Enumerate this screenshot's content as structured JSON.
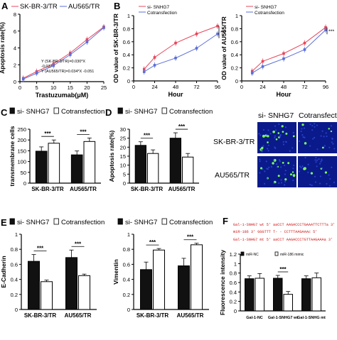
{
  "panel_letters": [
    "A",
    "B",
    "C",
    "D",
    "E",
    "F"
  ],
  "colors": {
    "series_red": "#e8475b",
    "series_blue": "#5b6fd8",
    "bar_black": "#111111",
    "bar_white": "#ffffff",
    "image_blue": "#0a1a8a",
    "image_green": "#7cff5a",
    "seq_red": "#d01818"
  },
  "chart_data": [
    {
      "id": "A",
      "type": "line",
      "legend": [
        "SK-BR-3/TR",
        "AU565/TR"
      ],
      "xlabel": "Trastuzumab(μM)",
      "ylabel": "Apoptosis rate(%)",
      "x": [
        1,
        5,
        10,
        15,
        20,
        25
      ],
      "xticks": [
        0,
        5,
        10,
        15,
        20,
        25
      ],
      "yticks": [
        0,
        2,
        4,
        6,
        8
      ],
      "xlim": [
        0,
        25
      ],
      "ylim": [
        0,
        8
      ],
      "series": [
        {
          "name": "SK-BR-3/TR",
          "color": "#e8475b",
          "values": [
            0.4,
            1.2,
            2.1,
            3.4,
            5.0,
            6.5
          ]
        },
        {
          "name": "AU565/TR",
          "color": "#5b6fd8",
          "values": [
            0.3,
            1.0,
            1.9,
            3.2,
            4.7,
            6.4
          ]
        }
      ],
      "annotations": [
        "Y (SK-BR-3/TR)=0.030*X",
        "-0.037",
        "Y (AU565/TR)=0.034*X -0.051"
      ]
    },
    {
      "id": "B1",
      "type": "line",
      "legend": [
        "si- SNHG7",
        "Cotransfection"
      ],
      "xlabel": "Hour",
      "ylabel": "OD value of SK-BR-3/TR",
      "x": [
        12,
        24,
        48,
        72,
        96
      ],
      "xticks": [
        0,
        24,
        48,
        72,
        96
      ],
      "yticks": [
        0.0,
        0.2,
        0.4,
        0.6,
        0.8,
        1.0
      ],
      "xlim": [
        0,
        96
      ],
      "ylim": [
        0,
        1.0
      ],
      "series": [
        {
          "name": "si- SNHG7",
          "color": "#e8475b",
          "values": [
            0.18,
            0.36,
            0.58,
            0.72,
            0.84
          ]
        },
        {
          "name": "Cotransfection",
          "color": "#5b6fd8",
          "values": [
            0.14,
            0.24,
            0.35,
            0.5,
            0.72
          ]
        }
      ],
      "significance": "***"
    },
    {
      "id": "B2",
      "type": "line",
      "legend": [
        "si- SNHG7",
        "Cotransfection"
      ],
      "xlabel": "Hour",
      "ylabel": "OD value of AU565/TR",
      "x": [
        12,
        24,
        48,
        72,
        96
      ],
      "xticks": [
        0,
        24,
        48,
        72,
        96
      ],
      "yticks": [
        0.0,
        0.2,
        0.4,
        0.6,
        0.8,
        1.0
      ],
      "xlim": [
        0,
        96
      ],
      "ylim": [
        0,
        1.0
      ],
      "series": [
        {
          "name": "si- SNHG7",
          "color": "#e8475b",
          "values": [
            0.15,
            0.3,
            0.42,
            0.58,
            0.82
          ]
        },
        {
          "name": "Cotransfection",
          "color": "#5b6fd8",
          "values": [
            0.12,
            0.22,
            0.34,
            0.48,
            0.78
          ]
        }
      ],
      "significance": "***"
    },
    {
      "id": "C",
      "type": "bar",
      "legend": [
        "si- SNHG7",
        "Cotransfection"
      ],
      "ylabel": "transmembrane cells",
      "categories": [
        "SK-BR-3/TR",
        "AU565/TR"
      ],
      "yticks": [
        0,
        50,
        100,
        150,
        200,
        250
      ],
      "ylim": [
        0,
        250
      ],
      "series": [
        {
          "name": "si- SNHG7",
          "fill": "#111111",
          "values": [
            148,
            131
          ],
          "errors": [
            20,
            18
          ]
        },
        {
          "name": "Cotransfection",
          "fill": "#ffffff",
          "values": [
            185,
            193
          ],
          "errors": [
            15,
            16
          ]
        }
      ],
      "significance": [
        "***",
        "***"
      ]
    },
    {
      "id": "D",
      "type": "bar",
      "legend": [
        "si- SNHG7",
        "Cotransfection"
      ],
      "ylabel": "Apoptosis rate(%)",
      "categories": [
        "SK-BR-3/TR",
        "AU565/TR"
      ],
      "yticks": [
        0,
        5,
        10,
        15,
        20,
        25,
        30
      ],
      "ylim": [
        0,
        30
      ],
      "series": [
        {
          "name": "si- SNHG7",
          "fill": "#111111",
          "values": [
            21,
            25
          ],
          "errors": [
            2,
            3
          ]
        },
        {
          "name": "Cotransfection",
          "fill": "#ffffff",
          "values": [
            16.5,
            14.5
          ],
          "errors": [
            2,
            2
          ]
        }
      ],
      "significance": [
        "***",
        "***"
      ]
    },
    {
      "id": "E1",
      "type": "bar",
      "legend": [
        "si- SNHG7",
        "Cotransfection"
      ],
      "ylabel": "E-Cadherin",
      "categories": [
        "SK-BR-3/TR",
        "AU565/TR"
      ],
      "yticks": [
        0.0,
        0.2,
        0.4,
        0.6,
        0.8,
        1.0
      ],
      "ylim": [
        0,
        1.0
      ],
      "series": [
        {
          "name": "si- SNHG7",
          "fill": "#111111",
          "values": [
            0.64,
            0.69
          ],
          "errors": [
            0.09,
            0.1
          ]
        },
        {
          "name": "Cotransfection",
          "fill": "#ffffff",
          "values": [
            0.37,
            0.45
          ],
          "errors": [
            0.02,
            0.02
          ]
        }
      ],
      "significance": [
        "***",
        "***"
      ]
    },
    {
      "id": "E2",
      "type": "bar",
      "legend": [
        "si- SNHG7",
        "Cotransfection"
      ],
      "ylabel": "Vimentin",
      "categories": [
        "SK-BR-3/TR",
        "AU565/TR"
      ],
      "yticks": [
        0.0,
        0.2,
        0.4,
        0.6,
        0.8,
        1.0
      ],
      "ylim": [
        0,
        1.0
      ],
      "series": [
        {
          "name": "si- SNHG7",
          "fill": "#111111",
          "values": [
            0.53,
            0.58
          ],
          "errors": [
            0.1,
            0.1
          ]
        },
        {
          "name": "Cotransfection",
          "fill": "#ffffff",
          "values": [
            0.79,
            0.86
          ],
          "errors": [
            0.02,
            0.02
          ]
        }
      ],
      "significance": [
        "***",
        "***"
      ]
    },
    {
      "id": "F",
      "type": "bar",
      "legend": [
        "miR-NC",
        "miR-186 mimic"
      ],
      "ylabel": "Fluorescence intensity",
      "categories": [
        "Gal-1-NC",
        "Gal-1-SNHG7 wt",
        "Gal-1-SNHG mt"
      ],
      "yticks": [
        0.0,
        0.2,
        0.4,
        0.6,
        0.8,
        1.0,
        1.2
      ],
      "ylim": [
        0,
        1.2
      ],
      "series": [
        {
          "name": "miR-NC",
          "fill": "#111111",
          "values": [
            0.68,
            0.69,
            0.68
          ],
          "errors": [
            0.06,
            0.06,
            0.06
          ]
        },
        {
          "name": "miR-186 mimic",
          "fill": "#ffffff",
          "values": [
            0.69,
            0.35,
            0.7
          ],
          "errors": [
            0.1,
            0.06,
            0.1
          ]
        }
      ],
      "significance": [
        "",
        "***",
        ""
      ]
    }
  ],
  "micrograph": {
    "columns": [
      "si- SNHG7",
      "Cotransfection"
    ],
    "rows": [
      "SK-BR-3/TR",
      "AU565/TR"
    ]
  },
  "sequence": {
    "lines": [
      "Gal-1-SNHG7 wt 5' aaCCT AAGACCCTGAAATTCTTTa 3'",
      "miR-186 3' GGGTTT T- - CCTTTAAGAAAc 5'",
      "Gal-1-SNHG7 mt 5' aaCCT AAGACCCTGTTAAGAAAa 3'"
    ]
  }
}
